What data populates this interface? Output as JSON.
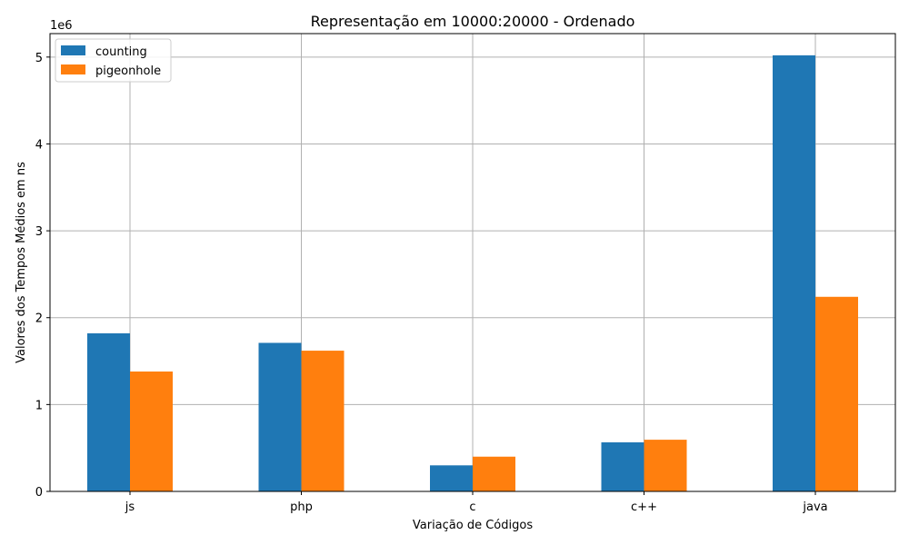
{
  "chart_data": {
    "type": "bar",
    "title": "Representação em 10000:20000 - Ordenado",
    "xlabel": "Variação de Códigos",
    "ylabel": "Valores dos Tempos Médios em ns",
    "y_offset_label": "1e6",
    "categories": [
      "js",
      "php",
      "c",
      "c++",
      "java"
    ],
    "series": [
      {
        "name": "counting",
        "color": "#1f77b4",
        "values": [
          1820000,
          1710000,
          300000,
          565000,
          5020000
        ]
      },
      {
        "name": "pigeonhole",
        "color": "#ff7f0e",
        "values": [
          1380000,
          1620000,
          400000,
          595000,
          2240000
        ]
      }
    ],
    "ylim": [
      0,
      5270000
    ],
    "yticks": [
      0,
      1000000,
      2000000,
      3000000,
      4000000,
      5000000
    ],
    "ytick_labels": [
      "0",
      "1",
      "2",
      "3",
      "4",
      "5"
    ],
    "grid": true,
    "legend_position": "top-left"
  }
}
